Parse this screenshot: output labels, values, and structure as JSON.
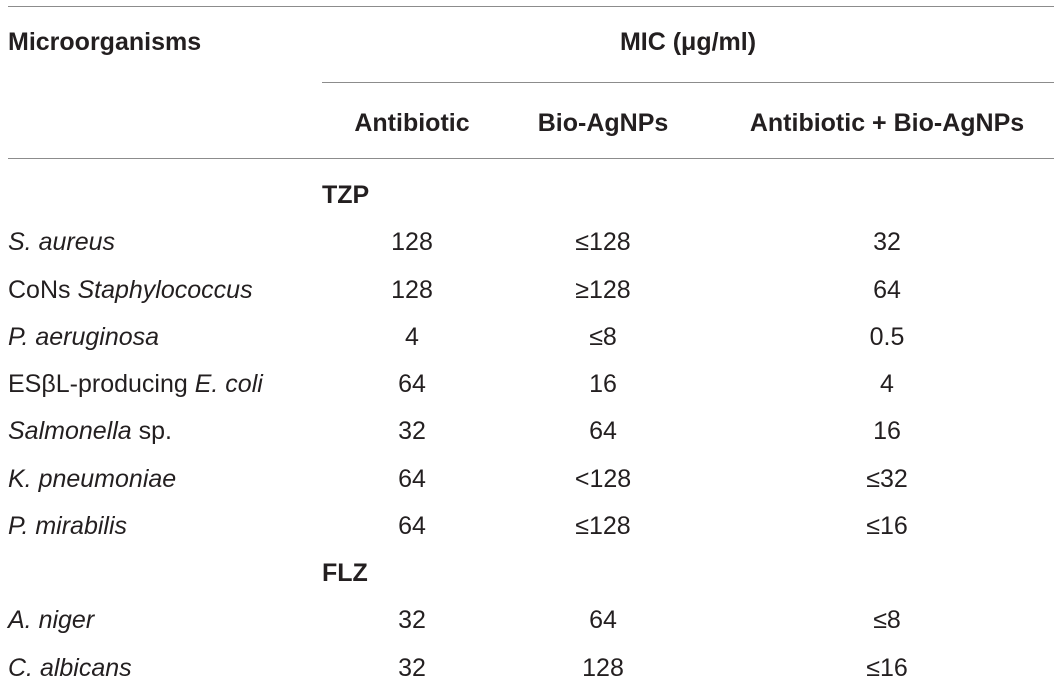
{
  "header": {
    "microorganisms": "Microorganisms",
    "mic": "MIC (μg/ml)",
    "col_antibiotic": "Antibiotic",
    "col_bio": "Bio-AgNPs",
    "col_combined": "Antibiotic + Bio-AgNPs"
  },
  "groups": [
    {
      "name": "TZP",
      "rows": [
        {
          "organism": [
            {
              "t": "S. aureus",
              "i": true
            }
          ],
          "antibiotic": "128",
          "bio": "≤128",
          "combined": "32"
        },
        {
          "organism": [
            {
              "t": "CoNs ",
              "i": false
            },
            {
              "t": "Staphylococcus",
              "i": true
            }
          ],
          "antibiotic": "128",
          "bio": "≥128",
          "combined": "64"
        },
        {
          "organism": [
            {
              "t": "P. aeruginosa",
              "i": true
            }
          ],
          "antibiotic": "4",
          "bio": "≤8",
          "combined": "0.5"
        },
        {
          "organism": [
            {
              "t": "ESβL-producing ",
              "i": false
            },
            {
              "t": "E. coli",
              "i": true
            }
          ],
          "antibiotic": "64",
          "bio": "16",
          "combined": "4"
        },
        {
          "organism": [
            {
              "t": "Salmonella",
              "i": true
            },
            {
              "t": " sp.",
              "i": false
            }
          ],
          "antibiotic": "32",
          "bio": "64",
          "combined": "16"
        },
        {
          "organism": [
            {
              "t": "K. pneumoniae",
              "i": true
            }
          ],
          "antibiotic": "64",
          "bio": "<128",
          "combined": "≤32"
        },
        {
          "organism": [
            {
              "t": "P. mirabilis",
              "i": true
            }
          ],
          "antibiotic": "64",
          "bio": "≤128",
          "combined": "≤16"
        }
      ]
    },
    {
      "name": "FLZ",
      "rows": [
        {
          "organism": [
            {
              "t": "A. niger",
              "i": true
            }
          ],
          "antibiotic": "32",
          "bio": "64",
          "combined": "≤8"
        },
        {
          "organism": [
            {
              "t": "C. albicans",
              "i": true
            }
          ],
          "antibiotic": "32",
          "bio": "128",
          "combined": "≤16"
        }
      ]
    }
  ]
}
